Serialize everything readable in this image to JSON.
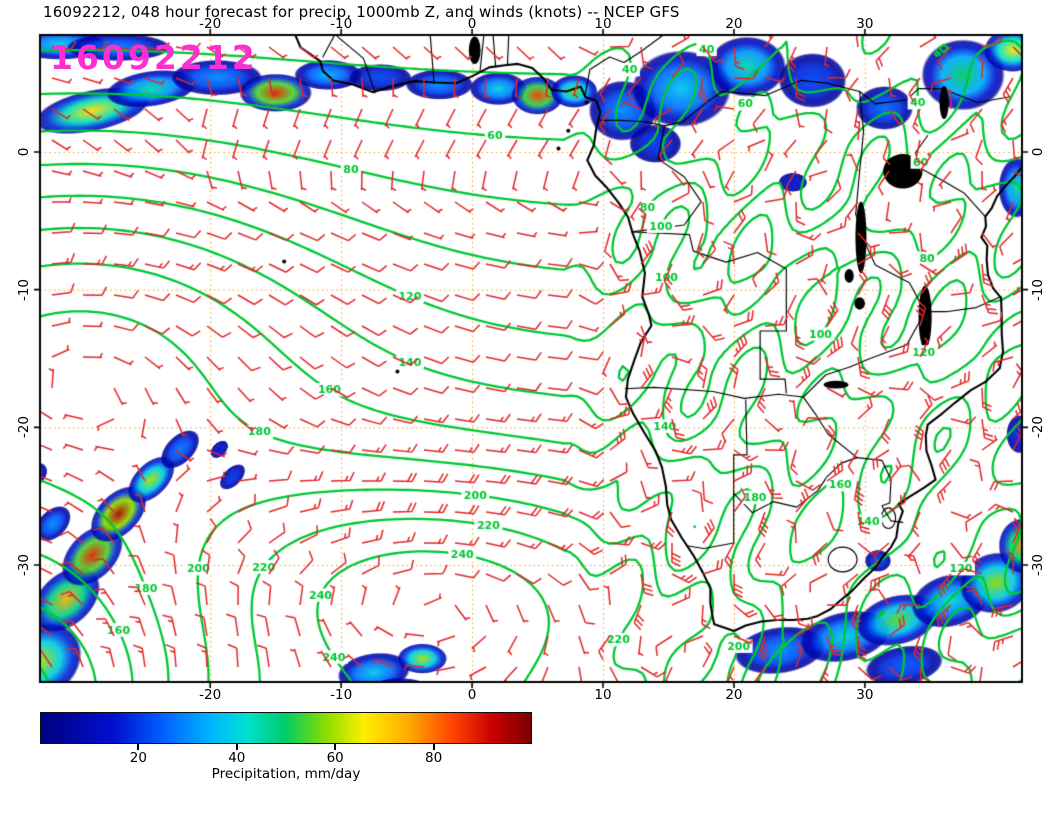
{
  "chart_data": {
    "type": "heatmap",
    "chart_kind": "weather-forecast-map",
    "title": "16092212, 048 hour forecast for precip, 1000mb Z, and winds (knots) -- NCEP GFS",
    "timestamp_label": "16092212",
    "timestamp_color": "#ff2ed2",
    "model": "NCEP GFS",
    "forecast_hour": "048",
    "x_axis": {
      "ticks": [
        -20,
        -10,
        0,
        10,
        20,
        30
      ],
      "range": [
        -33,
        42
      ]
    },
    "y_axis": {
      "ticks": [
        0,
        -10,
        -20,
        -30
      ],
      "range": [
        -38.5,
        8.5
      ]
    },
    "grid": {
      "style": "dotted",
      "color": "#eda427"
    },
    "contours": {
      "variable": "1000mb Z",
      "color": "#00c832",
      "levels": [
        40,
        60,
        80,
        100,
        120,
        140,
        160,
        180,
        200,
        220,
        240
      ]
    },
    "winds": {
      "symbol": "barbs",
      "units": "knots",
      "color": "#e02828"
    },
    "coastline_color": "#000000",
    "colorbar": {
      "label": "Precipitation, mm/day",
      "ticks": [
        20,
        40,
        60,
        80
      ],
      "range": [
        0,
        100
      ],
      "stop_values": [
        0,
        15,
        25,
        35,
        42,
        50,
        58,
        66,
        75,
        84,
        92,
        100
      ],
      "stop_colors": [
        "#000080",
        "#0010d0",
        "#0060ff",
        "#00b8ff",
        "#00e0d0",
        "#00cc66",
        "#88dd00",
        "#ffee00",
        "#ffaa00",
        "#ff4400",
        "#cc0000",
        "#7a0000"
      ]
    }
  }
}
